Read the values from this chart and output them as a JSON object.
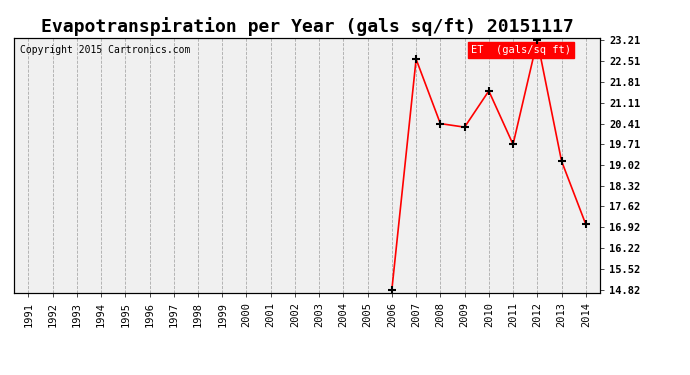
{
  "title": "Evapotranspiration per Year (gals sq/ft) 20151117",
  "copyright": "Copyright 2015 Cartronics.com",
  "legend_label": "ET  (gals/sq ft)",
  "years": [
    1991,
    1992,
    1993,
    1994,
    1995,
    1996,
    1997,
    1998,
    1999,
    2000,
    2001,
    2002,
    2003,
    2004,
    2005,
    2006,
    2007,
    2008,
    2009,
    2010,
    2011,
    2012,
    2013,
    2014
  ],
  "values": [
    null,
    null,
    null,
    null,
    null,
    null,
    null,
    null,
    null,
    null,
    null,
    null,
    null,
    null,
    null,
    14.82,
    22.58,
    20.41,
    20.29,
    21.51,
    19.71,
    23.21,
    19.15,
    17.02
  ],
  "line_color": "red",
  "marker": "+",
  "marker_color": "black",
  "marker_size": 6,
  "marker_edge_width": 1.5,
  "ylim_min": 14.82,
  "ylim_max": 23.21,
  "yticks": [
    14.82,
    15.52,
    16.22,
    16.92,
    17.62,
    18.32,
    19.02,
    19.71,
    20.41,
    21.11,
    21.81,
    22.51,
    23.21
  ],
  "bg_color": "#f0f0f0",
  "grid_color": "#aaaaaa",
  "line_width": 1.2,
  "title_fontsize": 13,
  "tick_fontsize": 7.5,
  "copyright_fontsize": 7,
  "legend_fontsize": 7.5
}
